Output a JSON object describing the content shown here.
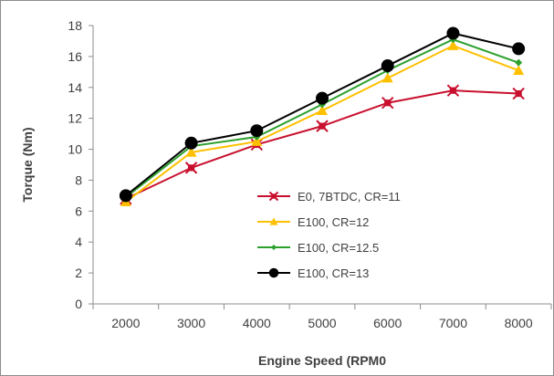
{
  "chart_data": {
    "type": "line",
    "title": "",
    "xlabel": "Engine Speed (RPM0",
    "ylabel": "Torque (Nm)",
    "x": [
      2000,
      3000,
      4000,
      5000,
      6000,
      7000,
      8000
    ],
    "x_tick_labels": [
      "2000",
      "3000",
      "4000",
      "5000",
      "6000",
      "7000",
      "8000"
    ],
    "ylim": [
      0,
      18
    ],
    "y_ticks": [
      0,
      2,
      4,
      6,
      8,
      10,
      12,
      14,
      16,
      18
    ],
    "y_tick_labels": [
      "0",
      "2",
      "4",
      "6",
      "8",
      "10",
      "12",
      "14",
      "16",
      "18"
    ],
    "grid": false,
    "legend_position": "lower-right",
    "series": [
      {
        "name": "E0, 7BTDC, CR=11",
        "color": "#c8102e",
        "marker": "square-x",
        "values": [
          6.8,
          8.8,
          10.3,
          11.5,
          13.0,
          13.8,
          13.6
        ]
      },
      {
        "name": "E100, CR=12",
        "color": "#ffc000",
        "marker": "triangle",
        "values": [
          6.6,
          9.8,
          10.5,
          12.5,
          14.6,
          16.7,
          15.1
        ]
      },
      {
        "name": "E100, CR=12.5",
        "color": "#2ca02c",
        "marker": "diamond",
        "values": [
          6.9,
          10.2,
          10.8,
          12.9,
          15.1,
          17.1,
          15.6
        ]
      },
      {
        "name": "E100, CR=13",
        "color": "#000000",
        "marker": "circle",
        "values": [
          7.0,
          10.4,
          11.2,
          13.3,
          15.4,
          17.5,
          16.5
        ]
      }
    ]
  }
}
